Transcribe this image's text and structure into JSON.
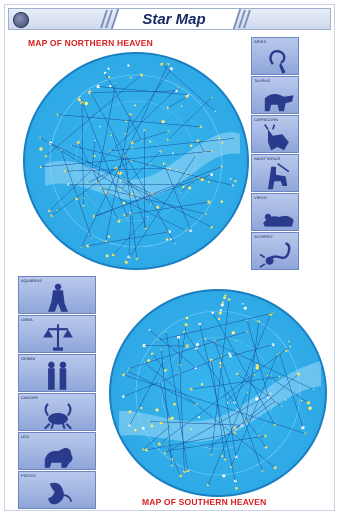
{
  "header": {
    "title": "Star Map",
    "logo_icon": "globe-icon"
  },
  "northern": {
    "caption": "MAP OF NORTHERN HEAVEN"
  },
  "southern": {
    "caption": "MAP OF SOUTHERN HEAVEN"
  },
  "right_panels": [
    {
      "label": "ARIES",
      "icon": "aries-ram-icon"
    },
    {
      "label": "TAURUS",
      "icon": "taurus-bull-icon"
    },
    {
      "label": "CAPRICORN",
      "icon": "capricorn-goat-icon"
    },
    {
      "label": "SAGITTARIUS",
      "icon": "sagittarius-archer-icon"
    },
    {
      "label": "VIRGO",
      "icon": "virgo-figure-icon"
    },
    {
      "label": "SCORPIO",
      "icon": "scorpio-scorpion-icon"
    }
  ],
  "left_panels": [
    {
      "label": "AQUARIUS",
      "icon": "aquarius-water-bearer-icon"
    },
    {
      "label": "LIBRA",
      "icon": "libra-scales-icon"
    },
    {
      "label": "GEMINI",
      "icon": "gemini-twins-icon"
    },
    {
      "label": "CANCER",
      "icon": "cancer-crab-icon"
    },
    {
      "label": "LEO",
      "icon": "leo-lion-icon"
    },
    {
      "label": "PISCES",
      "icon": "pisces-fish-icon"
    }
  ],
  "colors": {
    "map_blue": "#2ea9e6",
    "caption_red": "#d81e1e",
    "panel_blue": "#a7bbe6",
    "figure_navy": "#2a3a8c"
  }
}
